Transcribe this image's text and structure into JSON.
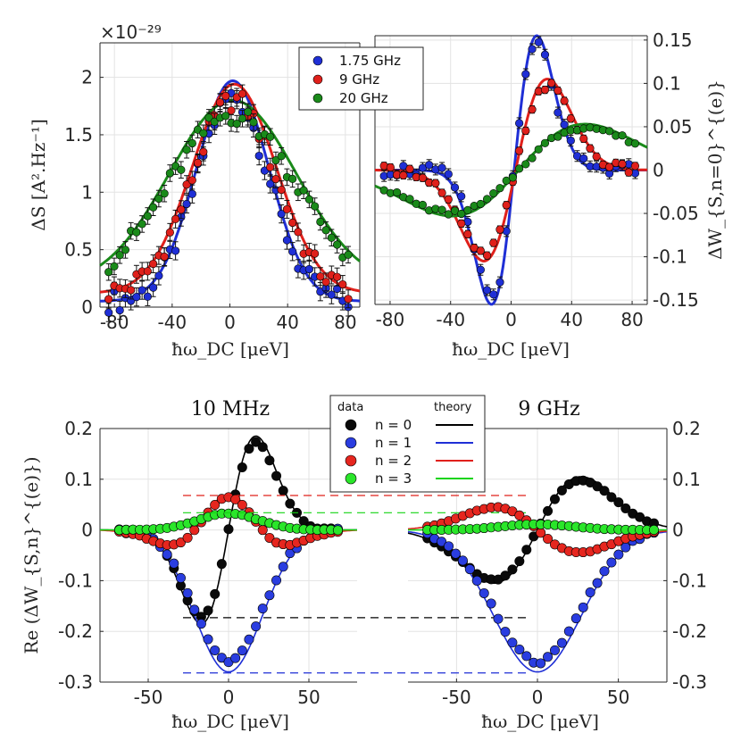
{
  "chart_data": [
    {
      "id": "top-left",
      "type": "scatter",
      "ylabel": "ΔS [A².Hz⁻¹]",
      "xlabel": "ħω_DC [μeV]",
      "exponent_label": "×10⁻²⁹",
      "xlim": [
        -90,
        90
      ],
      "ylim": [
        0,
        2.3
      ],
      "xticks": [
        -80,
        -40,
        0,
        40,
        80
      ],
      "xtick_labels": [
        "-80",
        "-40",
        "0",
        "40",
        "80"
      ],
      "yticks": [
        0,
        0.5,
        1,
        1.5,
        2
      ],
      "ytick_labels": [
        "0",
        "0.5",
        "1",
        "1.5",
        "2"
      ],
      "legend": [
        "1.75 GHz",
        "9 GHz",
        "20 GHz"
      ],
      "series": [
        {
          "name": "1.75 GHz",
          "color": "#1f2fd6",
          "model": "gauss",
          "amp": 1.97,
          "center": 2,
          "sigma": 25,
          "base": 0.05
        },
        {
          "name": "9 GHz",
          "color": "#e0201b",
          "model": "gauss",
          "amp": 1.94,
          "center": 3,
          "sigma": 29,
          "base": 0.12
        },
        {
          "name": "20 GHz",
          "color": "#1a8a1a",
          "model": "gauss",
          "amp": 1.8,
          "center": 2,
          "sigma": 44,
          "base": 0.18
        }
      ]
    },
    {
      "id": "top-right",
      "type": "scatter",
      "ylabel": "ΔW_{S,n=0}^{(e)}",
      "xlabel": "ħω_DC [μeV]",
      "xlim": [
        -90,
        90
      ],
      "ylim": [
        -0.155,
        0.155
      ],
      "xticks": [
        -80,
        -40,
        0,
        40,
        80
      ],
      "xtick_labels": [
        "-80",
        "-40",
        "0",
        "40",
        "80"
      ],
      "yticks": [
        -0.15,
        -0.1,
        -0.05,
        0,
        0.05,
        0.1,
        0.15
      ],
      "ytick_labels": [
        "-0.15",
        "-0.1",
        "-0.05",
        "0",
        "0.05",
        "0.1",
        "0.15"
      ],
      "series": [
        {
          "name": "1.75 GHz",
          "color": "#1f2fd6",
          "model": "dgauss",
          "amp": 0.155,
          "center": 2,
          "sigma": 15
        },
        {
          "name": "9 GHz",
          "color": "#e0201b",
          "model": "dgauss",
          "amp": 0.105,
          "center": 3,
          "sigma": 21
        },
        {
          "name": "20 GHz",
          "color": "#1a8a1a",
          "model": "dgauss",
          "amp": 0.053,
          "center": 5,
          "sigma": 44
        }
      ]
    },
    {
      "id": "bottom-left",
      "type": "scatter",
      "title": "10 MHz",
      "ylabel": "Re (ΔW_{S,n}^{(e)})",
      "xlabel": "ħω_DC [μeV]",
      "xlim": [
        -80,
        80
      ],
      "ylim": [
        -0.3,
        0.2
      ],
      "xticks": [
        -50,
        0,
        50
      ],
      "xtick_labels": [
        "-50",
        "0",
        "50"
      ],
      "yticks": [
        -0.3,
        -0.2,
        -0.1,
        0,
        0.1,
        0.2
      ],
      "ytick_labels": [
        "-0.3",
        "-0.2",
        "-0.1",
        "0",
        "0.1",
        "0.2"
      ],
      "series": [
        {
          "name": "n = 0",
          "color": "#000000",
          "dot": "#0a0a0a",
          "model": "dgauss",
          "amp": 0.185,
          "center": 0,
          "sigma": 17
        },
        {
          "name": "n = 1",
          "color": "#1f2fd6",
          "dot": "#2a3de0",
          "model": "gauss",
          "amp": -0.28,
          "center": 0,
          "sigma": 21,
          "base": 0
        },
        {
          "name": "n = 2",
          "color": "#e0201b",
          "dot": "#e6261f",
          "model": "hermite",
          "amp": 0.07,
          "center": 0,
          "sigma": 21
        },
        {
          "name": "n = 3",
          "color": "#14d414",
          "dot": "#2ae62a",
          "model": "gauss",
          "amp": 0.035,
          "center": 0,
          "sigma": 19,
          "base": 0
        }
      ]
    },
    {
      "id": "bottom-right",
      "type": "scatter",
      "title": "9 GHz",
      "xlabel": "ħω_DC [μeV]",
      "xlim": [
        -80,
        80
      ],
      "ylim": [
        -0.3,
        0.2
      ],
      "xticks": [
        -50,
        0,
        50
      ],
      "xtick_labels": [
        "-50",
        "0",
        "50"
      ],
      "yticks": [
        -0.3,
        -0.2,
        -0.1,
        0,
        0.1,
        0.2
      ],
      "ytick_labels": [
        "-0.3",
        "-0.2",
        "-0.1",
        "0",
        "0.1",
        "0.2"
      ],
      "legend_header": [
        "data",
        "theory"
      ],
      "legend": [
        "n = 0",
        "n = 1",
        "n = 2",
        "n = 3"
      ],
      "series": [
        {
          "name": "n = 0",
          "color": "#000000",
          "dot": "#0a0a0a",
          "model": "dgauss",
          "amp": 0.105,
          "center": 0,
          "sigma": 27
        },
        {
          "name": "n = 1",
          "color": "#1f2fd6",
          "dot": "#2a3de0",
          "model": "gauss",
          "amp": -0.28,
          "center": 0,
          "sigma": 27,
          "base": 0
        },
        {
          "name": "n = 2",
          "color": "#e0201b",
          "dot": "#e6261f",
          "model": "dgauss",
          "amp": -0.048,
          "center": 0,
          "sigma": 26
        },
        {
          "name": "n = 3",
          "color": "#14d414",
          "dot": "#2ae62a",
          "model": "gauss",
          "amp": 0.012,
          "center": 0,
          "sigma": 22,
          "base": 0
        }
      ],
      "reference_lines": [
        {
          "value": 0.068,
          "color": "#e0201b"
        },
        {
          "value": 0.034,
          "color": "#14d414"
        },
        {
          "value": -0.173,
          "color": "#000000"
        },
        {
          "value": -0.282,
          "color": "#1f2fd6"
        }
      ]
    }
  ]
}
